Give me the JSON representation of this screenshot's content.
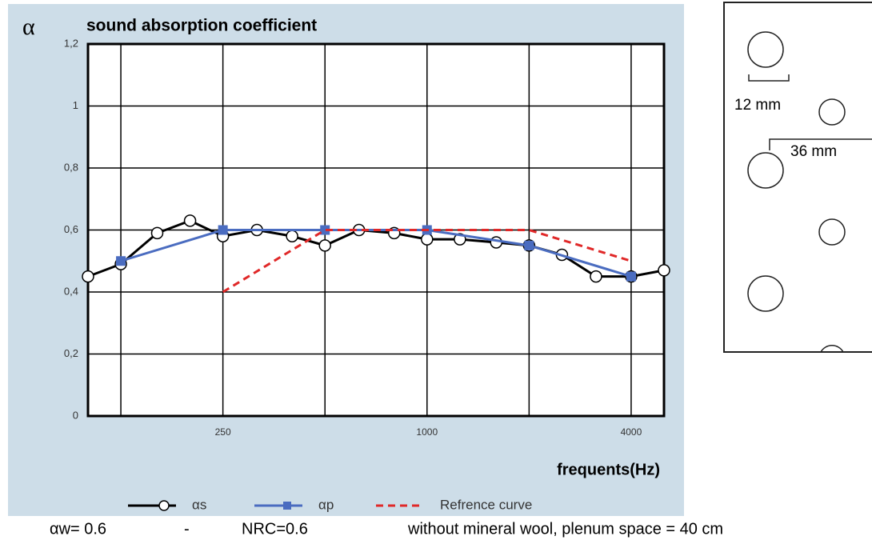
{
  "chart_data": {
    "type": "line",
    "title": "sound absorption coefficient",
    "y_label": "α",
    "x_label": "frequents(Hz)",
    "log_x": true,
    "xlim": [
      100,
      5000
    ],
    "xticks": [
      250,
      1000,
      4000
    ],
    "xgrid": [
      125,
      250,
      500,
      1000,
      2000,
      4000
    ],
    "ylim": [
      0,
      1.2
    ],
    "yticks": [
      0,
      {
        "value": 0.2,
        "label": "0,2"
      },
      {
        "value": 0.4,
        "label": "0,4"
      },
      {
        "value": 0.6,
        "label": "0,6"
      },
      {
        "value": 0.8,
        "label": "0,8"
      },
      1,
      {
        "value": 1.2,
        "label": "1,2"
      }
    ],
    "grid": true,
    "series": [
      {
        "name": "αs",
        "color": "#000000",
        "marker": "circle",
        "dashed": false,
        "x": [
          100,
          125,
          160,
          200,
          250,
          315,
          400,
          500,
          630,
          800,
          1000,
          1250,
          1600,
          2000,
          2500,
          3150,
          4000,
          5000
        ],
        "values": [
          0.45,
          0.49,
          0.59,
          0.63,
          0.58,
          0.6,
          0.58,
          0.55,
          0.6,
          0.59,
          0.57,
          0.57,
          0.56,
          0.55,
          0.52,
          0.45,
          0.45,
          0.47
        ]
      },
      {
        "name": "αp",
        "color": "#4a6cc0",
        "marker": "square",
        "dashed": false,
        "x": [
          125,
          250,
          500,
          1000,
          2000,
          4000
        ],
        "values": [
          0.5,
          0.6,
          0.6,
          0.6,
          0.55,
          0.45
        ]
      },
      {
        "name": "Refrence curve",
        "color": "#e02828",
        "marker": "none",
        "dashed": true,
        "x": [
          250,
          500,
          1000,
          2000,
          4000
        ],
        "values": [
          0.4,
          0.6,
          0.6,
          0.6,
          0.5
        ]
      }
    ],
    "notes": [
      "αw= 0.6",
      "-",
      "NRC=0.6",
      "without mineral wool, plenum space = 40 cm"
    ]
  },
  "diagram": {
    "labels": [
      "12 mm",
      "36 mm"
    ]
  }
}
